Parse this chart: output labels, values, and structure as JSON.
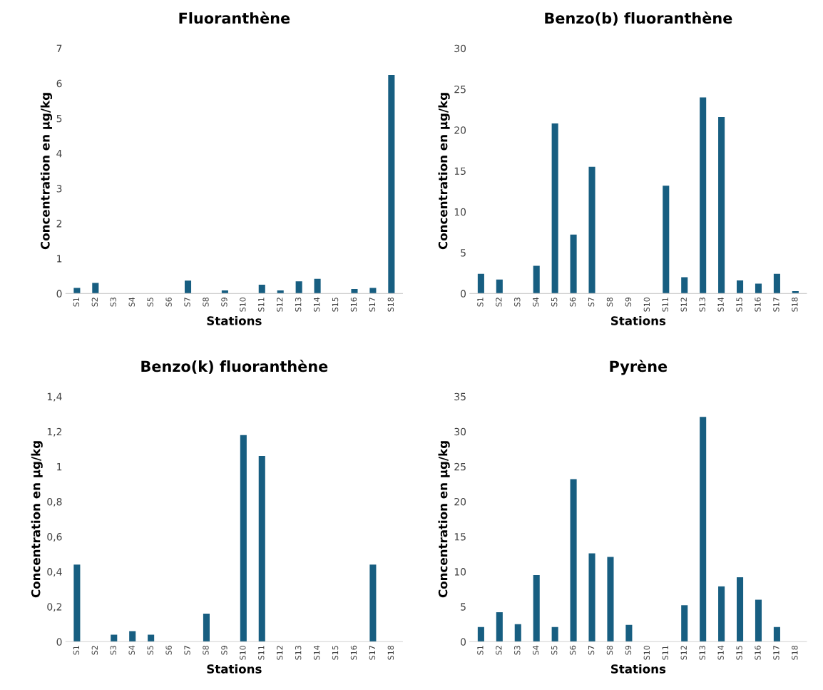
{
  "chart_data": [
    {
      "type": "bar",
      "title": "Fluoranthène",
      "xlabel": "Stations",
      "ylabel": "Concentration en µg/kg",
      "categories": [
        "S1",
        "S2",
        "S3",
        "S4",
        "S5",
        "S6",
        "S7",
        "S8",
        "S9",
        "S10",
        "S11",
        "S12",
        "S13",
        "S14",
        "S15",
        "S16",
        "S17",
        "S18"
      ],
      "color": "#175e81",
      "values": [
        0.16,
        0.3,
        0,
        0,
        0,
        0,
        0.37,
        0,
        0.09,
        0,
        0.25,
        0.09,
        0.35,
        0.42,
        0,
        0.13,
        0.16,
        6.24
      ],
      "ylim": [
        0,
        7
      ],
      "yticks": [
        0,
        1,
        2,
        3,
        4,
        5,
        6,
        7
      ],
      "grid": false
    },
    {
      "type": "bar",
      "title": "Benzo(b) fluoranthène",
      "xlabel": "Stations",
      "ylabel": "Concentration en µg/kg",
      "categories": [
        "S1",
        "S2",
        "S3",
        "S4",
        "S5",
        "S6",
        "S7",
        "S8",
        "S9",
        "S10",
        "S11",
        "S12",
        "S13",
        "S14",
        "S15",
        "S16",
        "S17",
        "S18"
      ],
      "color": "#175e81",
      "values": [
        2.4,
        1.7,
        0,
        3.4,
        20.8,
        7.2,
        15.5,
        0,
        0,
        0,
        13.2,
        2.0,
        24.0,
        21.6,
        1.6,
        1.2,
        2.4,
        0.3
      ],
      "ylim": [
        0,
        30
      ],
      "yticks": [
        0,
        5,
        10,
        15,
        20,
        25,
        30
      ],
      "grid": false
    },
    {
      "type": "bar",
      "title": "Benzo(k) fluoranthène",
      "xlabel": "Stations",
      "ylabel": "Concentration en µg/kg",
      "categories": [
        "S1",
        "S2",
        "S3",
        "S4",
        "S5",
        "S6",
        "S7",
        "S8",
        "S9",
        "S10",
        "S11",
        "S12",
        "S13",
        "S14",
        "S15",
        "S16",
        "S17",
        "S18"
      ],
      "color": "#175e81",
      "values": [
        0.44,
        0,
        0.04,
        0.06,
        0.04,
        0,
        0,
        0.16,
        0,
        1.18,
        1.06,
        0,
        0,
        0,
        0,
        0,
        0.44,
        0
      ],
      "ylim": [
        0,
        1.4
      ],
      "yticks": [
        0,
        {
          "value": 0.2,
          "label": "0,2"
        },
        {
          "value": 0.4,
          "label": "0,4"
        },
        {
          "value": 0.6,
          "label": "0,6"
        },
        {
          "value": 0.8,
          "label": "0,8"
        },
        1,
        {
          "value": 1.2,
          "label": "1,2"
        },
        {
          "value": 1.4,
          "label": "1,4"
        }
      ],
      "grid": false
    },
    {
      "type": "bar",
      "title": "Pyrène",
      "xlabel": "Stations",
      "ylabel": "Concentration en µg/kg",
      "categories": [
        "S1",
        "S2",
        "S3",
        "S4",
        "S5",
        "S6",
        "S7",
        "S8",
        "S9",
        "S10",
        "S11",
        "S12",
        "S13",
        "S14",
        "S15",
        "S16",
        "S17",
        "S18"
      ],
      "color": "#175e81",
      "values": [
        2.1,
        4.2,
        2.5,
        9.5,
        2.1,
        23.2,
        12.6,
        12.1,
        2.4,
        0,
        0,
        5.2,
        32.1,
        7.9,
        9.2,
        6.0,
        2.1,
        0
      ],
      "ylim": [
        0,
        35
      ],
      "yticks": [
        0,
        5,
        10,
        15,
        20,
        25,
        30,
        35
      ],
      "grid": false
    }
  ]
}
